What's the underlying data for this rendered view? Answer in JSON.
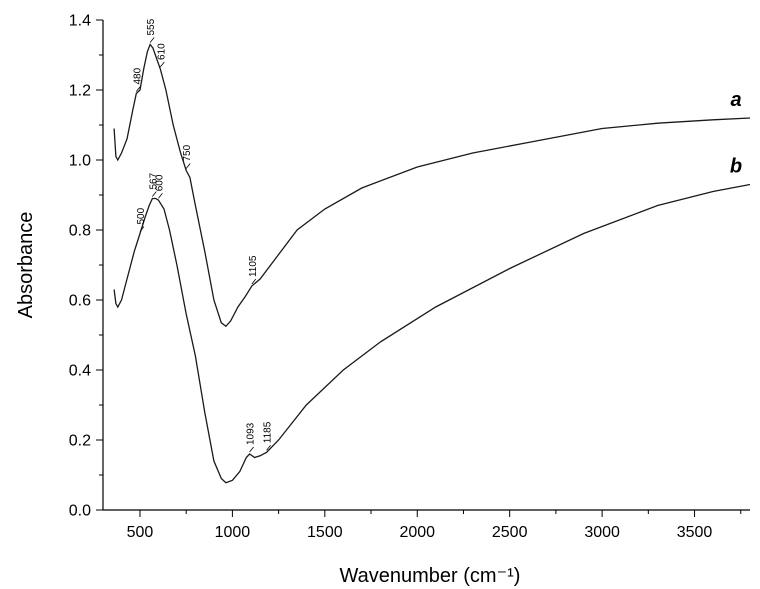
{
  "chart_data": {
    "type": "line",
    "xlabel": "Wavenumber (cm⁻¹)",
    "ylabel": "Absorbance",
    "xlim": [
      300,
      3800
    ],
    "ylim": [
      0.0,
      1.4
    ],
    "x_ticks": [
      500,
      1000,
      1500,
      2000,
      2500,
      3000,
      3500
    ],
    "y_ticks": [
      0.0,
      0.2,
      0.4,
      0.6,
      0.8,
      1.0,
      1.2,
      1.4
    ],
    "x_tick_labels": [
      "500",
      "1000",
      "1500",
      "2000",
      "2500",
      "3000",
      "3500"
    ],
    "y_tick_labels": [
      "0.0",
      "0.2",
      "0.4",
      "0.6",
      "0.8",
      "1.0",
      "1.2",
      "1.4"
    ],
    "grid": false,
    "series": [
      {
        "name": "a",
        "points": [
          [
            360,
            1.09
          ],
          [
            370,
            1.01
          ],
          [
            380,
            1.0
          ],
          [
            400,
            1.02
          ],
          [
            430,
            1.06
          ],
          [
            460,
            1.14
          ],
          [
            480,
            1.19
          ],
          [
            500,
            1.2
          ],
          [
            520,
            1.26
          ],
          [
            540,
            1.31
          ],
          [
            555,
            1.33
          ],
          [
            570,
            1.32
          ],
          [
            590,
            1.29
          ],
          [
            610,
            1.26
          ],
          [
            640,
            1.2
          ],
          [
            680,
            1.1
          ],
          [
            720,
            1.02
          ],
          [
            750,
            0.97
          ],
          [
            770,
            0.95
          ],
          [
            800,
            0.87
          ],
          [
            850,
            0.74
          ],
          [
            900,
            0.6
          ],
          [
            940,
            0.535
          ],
          [
            965,
            0.525
          ],
          [
            990,
            0.54
          ],
          [
            1030,
            0.58
          ],
          [
            1070,
            0.61
          ],
          [
            1105,
            0.64
          ],
          [
            1150,
            0.66
          ],
          [
            1250,
            0.73
          ],
          [
            1350,
            0.8
          ],
          [
            1500,
            0.86
          ],
          [
            1700,
            0.92
          ],
          [
            2000,
            0.98
          ],
          [
            2300,
            1.02
          ],
          [
            2600,
            1.05
          ],
          [
            3000,
            1.09
          ],
          [
            3300,
            1.105
          ],
          [
            3600,
            1.115
          ],
          [
            3800,
            1.12
          ]
        ]
      },
      {
        "name": "b",
        "points": [
          [
            360,
            0.63
          ],
          [
            370,
            0.59
          ],
          [
            380,
            0.58
          ],
          [
            400,
            0.6
          ],
          [
            430,
            0.66
          ],
          [
            470,
            0.74
          ],
          [
            500,
            0.79
          ],
          [
            530,
            0.84
          ],
          [
            550,
            0.87
          ],
          [
            567,
            0.89
          ],
          [
            585,
            0.89
          ],
          [
            600,
            0.885
          ],
          [
            630,
            0.86
          ],
          [
            660,
            0.8
          ],
          [
            700,
            0.7
          ],
          [
            750,
            0.56
          ],
          [
            800,
            0.44
          ],
          [
            850,
            0.28
          ],
          [
            900,
            0.14
          ],
          [
            940,
            0.09
          ],
          [
            965,
            0.078
          ],
          [
            1000,
            0.085
          ],
          [
            1040,
            0.11
          ],
          [
            1075,
            0.15
          ],
          [
            1093,
            0.16
          ],
          [
            1120,
            0.15
          ],
          [
            1150,
            0.155
          ],
          [
            1185,
            0.165
          ],
          [
            1250,
            0.2
          ],
          [
            1400,
            0.3
          ],
          [
            1600,
            0.4
          ],
          [
            1800,
            0.48
          ],
          [
            2100,
            0.58
          ],
          [
            2500,
            0.69
          ],
          [
            2900,
            0.79
          ],
          [
            3300,
            0.87
          ],
          [
            3600,
            0.91
          ],
          [
            3800,
            0.93
          ]
        ]
      }
    ],
    "annotations": [
      {
        "series": "a",
        "label": "480",
        "x": 480
      },
      {
        "series": "a",
        "label": "555",
        "x": 555
      },
      {
        "series": "a",
        "label": "610",
        "x": 610
      },
      {
        "series": "a",
        "label": "750",
        "x": 750
      },
      {
        "series": "a",
        "label": "1105",
        "x": 1105
      },
      {
        "series": "b",
        "label": "500",
        "x": 500
      },
      {
        "series": "b",
        "label": "567",
        "x": 567
      },
      {
        "series": "b",
        "label": "600",
        "x": 600
      },
      {
        "series": "b",
        "label": "1093",
        "x": 1093
      },
      {
        "series": "b",
        "label": "1185",
        "x": 1185
      }
    ]
  }
}
